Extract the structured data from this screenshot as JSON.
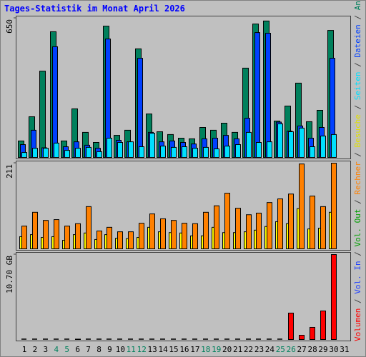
{
  "chart_data": [
    {
      "type": "bar",
      "title": "Tages-Statistik im Monat April 2026",
      "ylim": [
        0,
        650
      ],
      "yticks": [
        650
      ],
      "series": [
        {
          "name": "Anfragen",
          "color": "#00805c",
          "values": [
            77,
            190,
            403,
            587,
            77,
            227,
            117,
            70,
            613,
            103,
            127,
            507,
            203,
            120,
            107,
            90,
            87,
            140,
            127,
            160,
            117,
            417,
            623,
            637,
            170,
            240,
            347,
            167,
            220,
            593,
            null
          ]
        },
        {
          "name": "Dateien",
          "color": "#0040ff",
          "values": [
            60,
            127,
            45,
            517,
            50,
            73,
            57,
            43,
            553,
            80,
            73,
            463,
            117,
            73,
            77,
            70,
            63,
            87,
            90,
            103,
            87,
            183,
            583,
            580,
            165,
            123,
            147,
            90,
            140,
            463,
            null
          ]
        },
        {
          "name": "Seiten",
          "color": "#00e0ff",
          "values": [
            23,
            43,
            43,
            67,
            33,
            43,
            47,
            27,
            90,
            70,
            73,
            50,
            113,
            53,
            47,
            50,
            43,
            47,
            40,
            53,
            60,
            117,
            70,
            73,
            157,
            120,
            137,
            50,
            100,
            107,
            null
          ]
        }
      ]
    },
    {
      "type": "bar",
      "ylim": [
        0,
        211
      ],
      "yticks": [
        211
      ],
      "series": [
        {
          "name": "Besuche",
          "color": "#ffff00",
          "values": [
            30,
            35,
            28,
            30,
            21,
            35,
            39,
            23,
            35,
            26,
            25,
            28,
            53,
            42,
            40,
            39,
            32,
            32,
            53,
            40,
            40,
            42,
            46,
            55,
            67,
            62,
            99,
            49,
            51,
            90,
            null
          ]
        },
        {
          "name": "Rechner",
          "color": "#ff8000",
          "values": [
            56,
            90,
            70,
            72,
            56,
            62,
            104,
            44,
            53,
            42,
            42,
            63,
            86,
            74,
            70,
            63,
            62,
            90,
            106,
            137,
            100,
            84,
            88,
            114,
            123,
            135,
            209,
            130,
            104,
            211,
            null
          ]
        }
      ]
    },
    {
      "type": "bar",
      "ylim": [
        0,
        10.7
      ],
      "yticks": [
        {
          "value": 10.7,
          "label": "10.70 GB"
        }
      ],
      "categories": [
        "1",
        "2",
        "3",
        "4",
        "5",
        "6",
        "7",
        "8",
        "9",
        "10",
        "11",
        "12",
        "13",
        "14",
        "15",
        "16",
        "17",
        "18",
        "19",
        "20",
        "21",
        "22",
        "23",
        "24",
        "25",
        "26",
        "27",
        "28",
        "29",
        "30",
        "31"
      ],
      "category_colors": [
        "#000000",
        "#000000",
        "#000000",
        "#00805c",
        "#00805c",
        "#000000",
        "#000000",
        "#000000",
        "#000000",
        "#000000",
        "#00805c",
        "#00805c",
        "#000000",
        "#000000",
        "#000000",
        "#000000",
        "#000000",
        "#00805c",
        "#00805c",
        "#000000",
        "#000000",
        "#000000",
        "#000000",
        "#000000",
        "#00805c",
        "#00805c",
        "#000000",
        "#000000",
        "#000000",
        "#000000",
        "#000000"
      ],
      "series": [
        {
          "name": "Volumen",
          "color": "#ff0000",
          "values": [
            0,
            0,
            0,
            0,
            0,
            0.05,
            0,
            0,
            0,
            0,
            0,
            0,
            0,
            0,
            0,
            0,
            0,
            0,
            0,
            0,
            0,
            0,
            0,
            0,
            0,
            3.33,
            0.54,
            1.53,
            3.6,
            10.7,
            null
          ]
        },
        {
          "name": "Vol. In",
          "color": "#2040ff",
          "values": [
            null,
            null,
            null,
            null,
            null,
            null,
            null,
            null,
            null,
            null,
            null,
            null,
            null,
            null,
            null,
            null,
            null,
            null,
            null,
            null,
            null,
            null,
            null,
            null,
            null,
            null,
            null,
            null,
            null,
            null,
            null
          ]
        },
        {
          "name": "Vol. Out",
          "color": "#00a000",
          "values": [
            null,
            null,
            null,
            null,
            null,
            null,
            null,
            null,
            null,
            null,
            null,
            null,
            null,
            null,
            null,
            null,
            null,
            null,
            null,
            null,
            null,
            null,
            null,
            null,
            null,
            null,
            null,
            null,
            null,
            null,
            null
          ]
        }
      ]
    }
  ]
}
